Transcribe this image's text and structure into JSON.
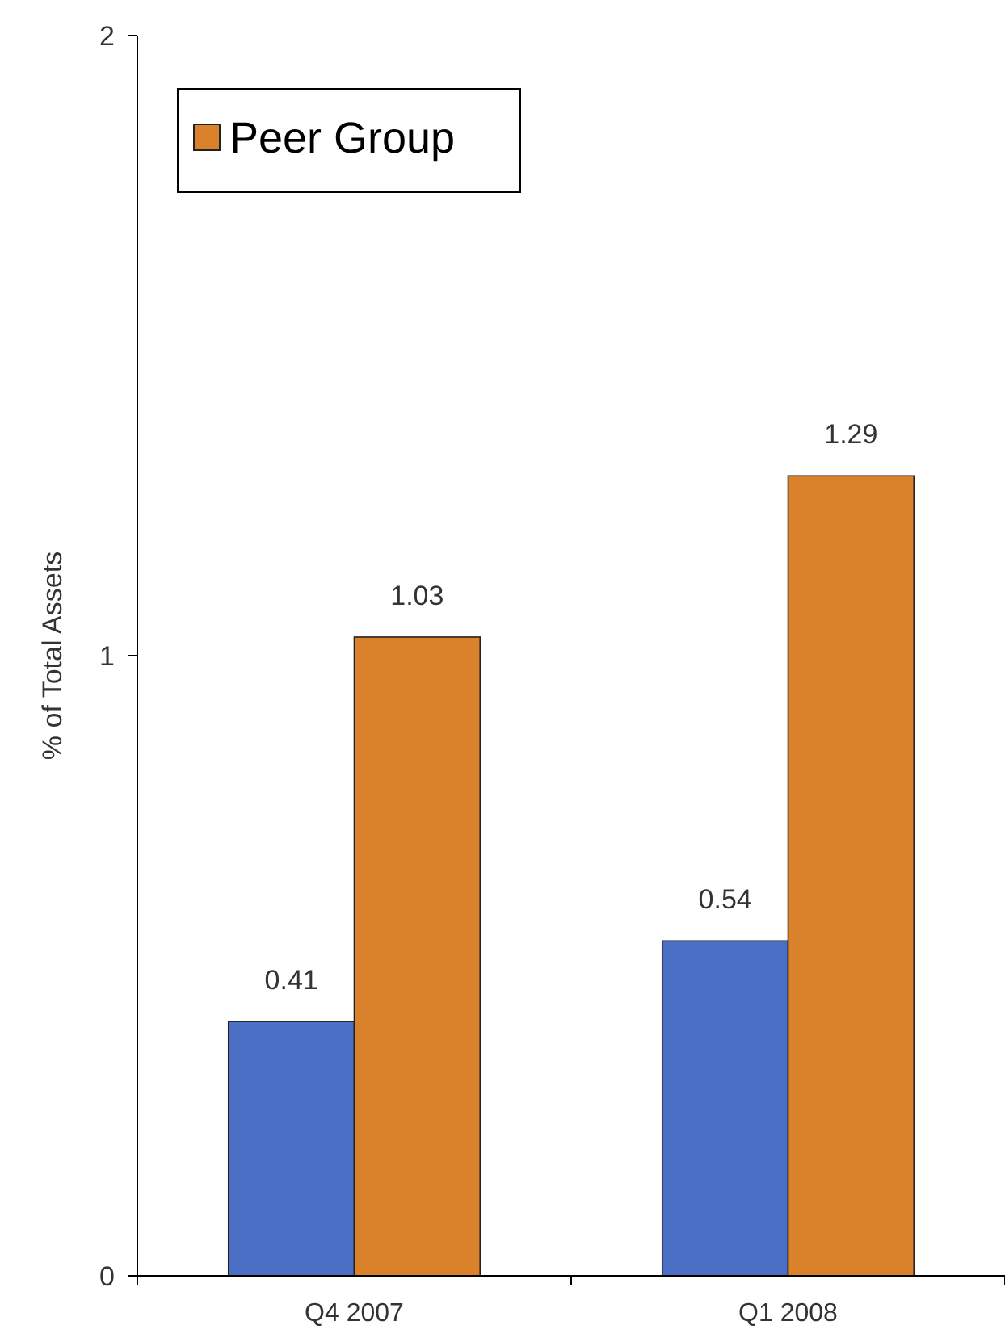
{
  "chart_data": {
    "type": "bar",
    "ylabel": "% of Total Assets",
    "categories": [
      "Q4 2007",
      "Q1 2008"
    ],
    "series": [
      {
        "color": "#4a6fc4",
        "values": [
          0.41,
          0.54
        ]
      },
      {
        "name": "Peer Group",
        "color": "#d9822b",
        "values": [
          1.03,
          1.29
        ]
      }
    ],
    "ylim": [
      0,
      2
    ],
    "yticks": [
      0,
      1,
      2
    ],
    "data_labels": true,
    "grid": false,
    "legend": "top left"
  }
}
